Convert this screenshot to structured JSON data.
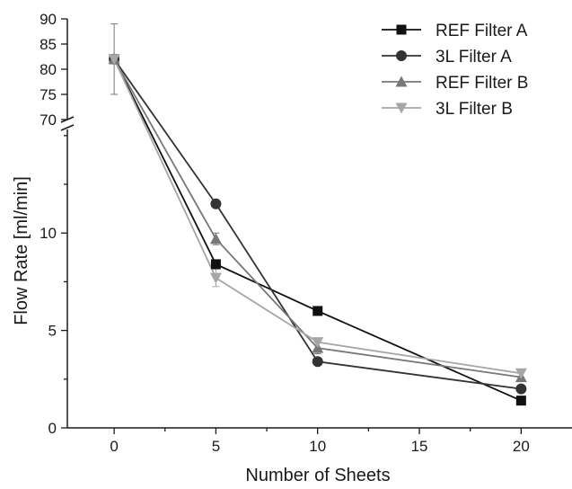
{
  "chart_data": {
    "type": "line",
    "title": "",
    "xlabel": "Number of Sheets",
    "ylabel": "Flow Rate [ml/min]",
    "x_ticks": [
      "0",
      "5",
      "10",
      "15",
      "20"
    ],
    "xlim": [
      -2.3,
      22.5
    ],
    "y_axis_break": true,
    "y_lower": {
      "ylim": [
        0,
        15.5
      ],
      "ticks": [
        "0",
        "5",
        "10"
      ]
    },
    "y_upper": {
      "ylim": [
        70,
        90
      ],
      "ticks": [
        "70",
        "75",
        "80",
        "85",
        "90"
      ]
    },
    "legend_position": "top-right",
    "grid": false,
    "series": [
      {
        "name": "REF Filter A",
        "marker": "square",
        "color": "#111111",
        "x": [
          0,
          5,
          10,
          20
        ],
        "y": [
          82,
          8.4,
          6.0,
          1.4
        ],
        "err": [
          0,
          0.2,
          0,
          0
        ]
      },
      {
        "name": "3L Filter A",
        "marker": "circle",
        "color": "#333333",
        "x": [
          0,
          5,
          10,
          20
        ],
        "y": [
          82,
          11.5,
          3.4,
          2.0
        ],
        "err": [
          0,
          0,
          0,
          0
        ]
      },
      {
        "name": "REF Filter B",
        "marker": "triangle-up",
        "color": "#777777",
        "x": [
          0,
          5,
          10,
          20
        ],
        "y": [
          82,
          9.7,
          4.1,
          2.6
        ],
        "err": [
          7,
          0.3,
          0.3,
          0
        ]
      },
      {
        "name": "3L Filter B",
        "marker": "triangle-down",
        "color": "#a6a6a6",
        "x": [
          0,
          5,
          10,
          20
        ],
        "y": [
          82,
          7.7,
          4.4,
          2.8
        ],
        "err": [
          0,
          0.45,
          0,
          0
        ]
      }
    ]
  }
}
